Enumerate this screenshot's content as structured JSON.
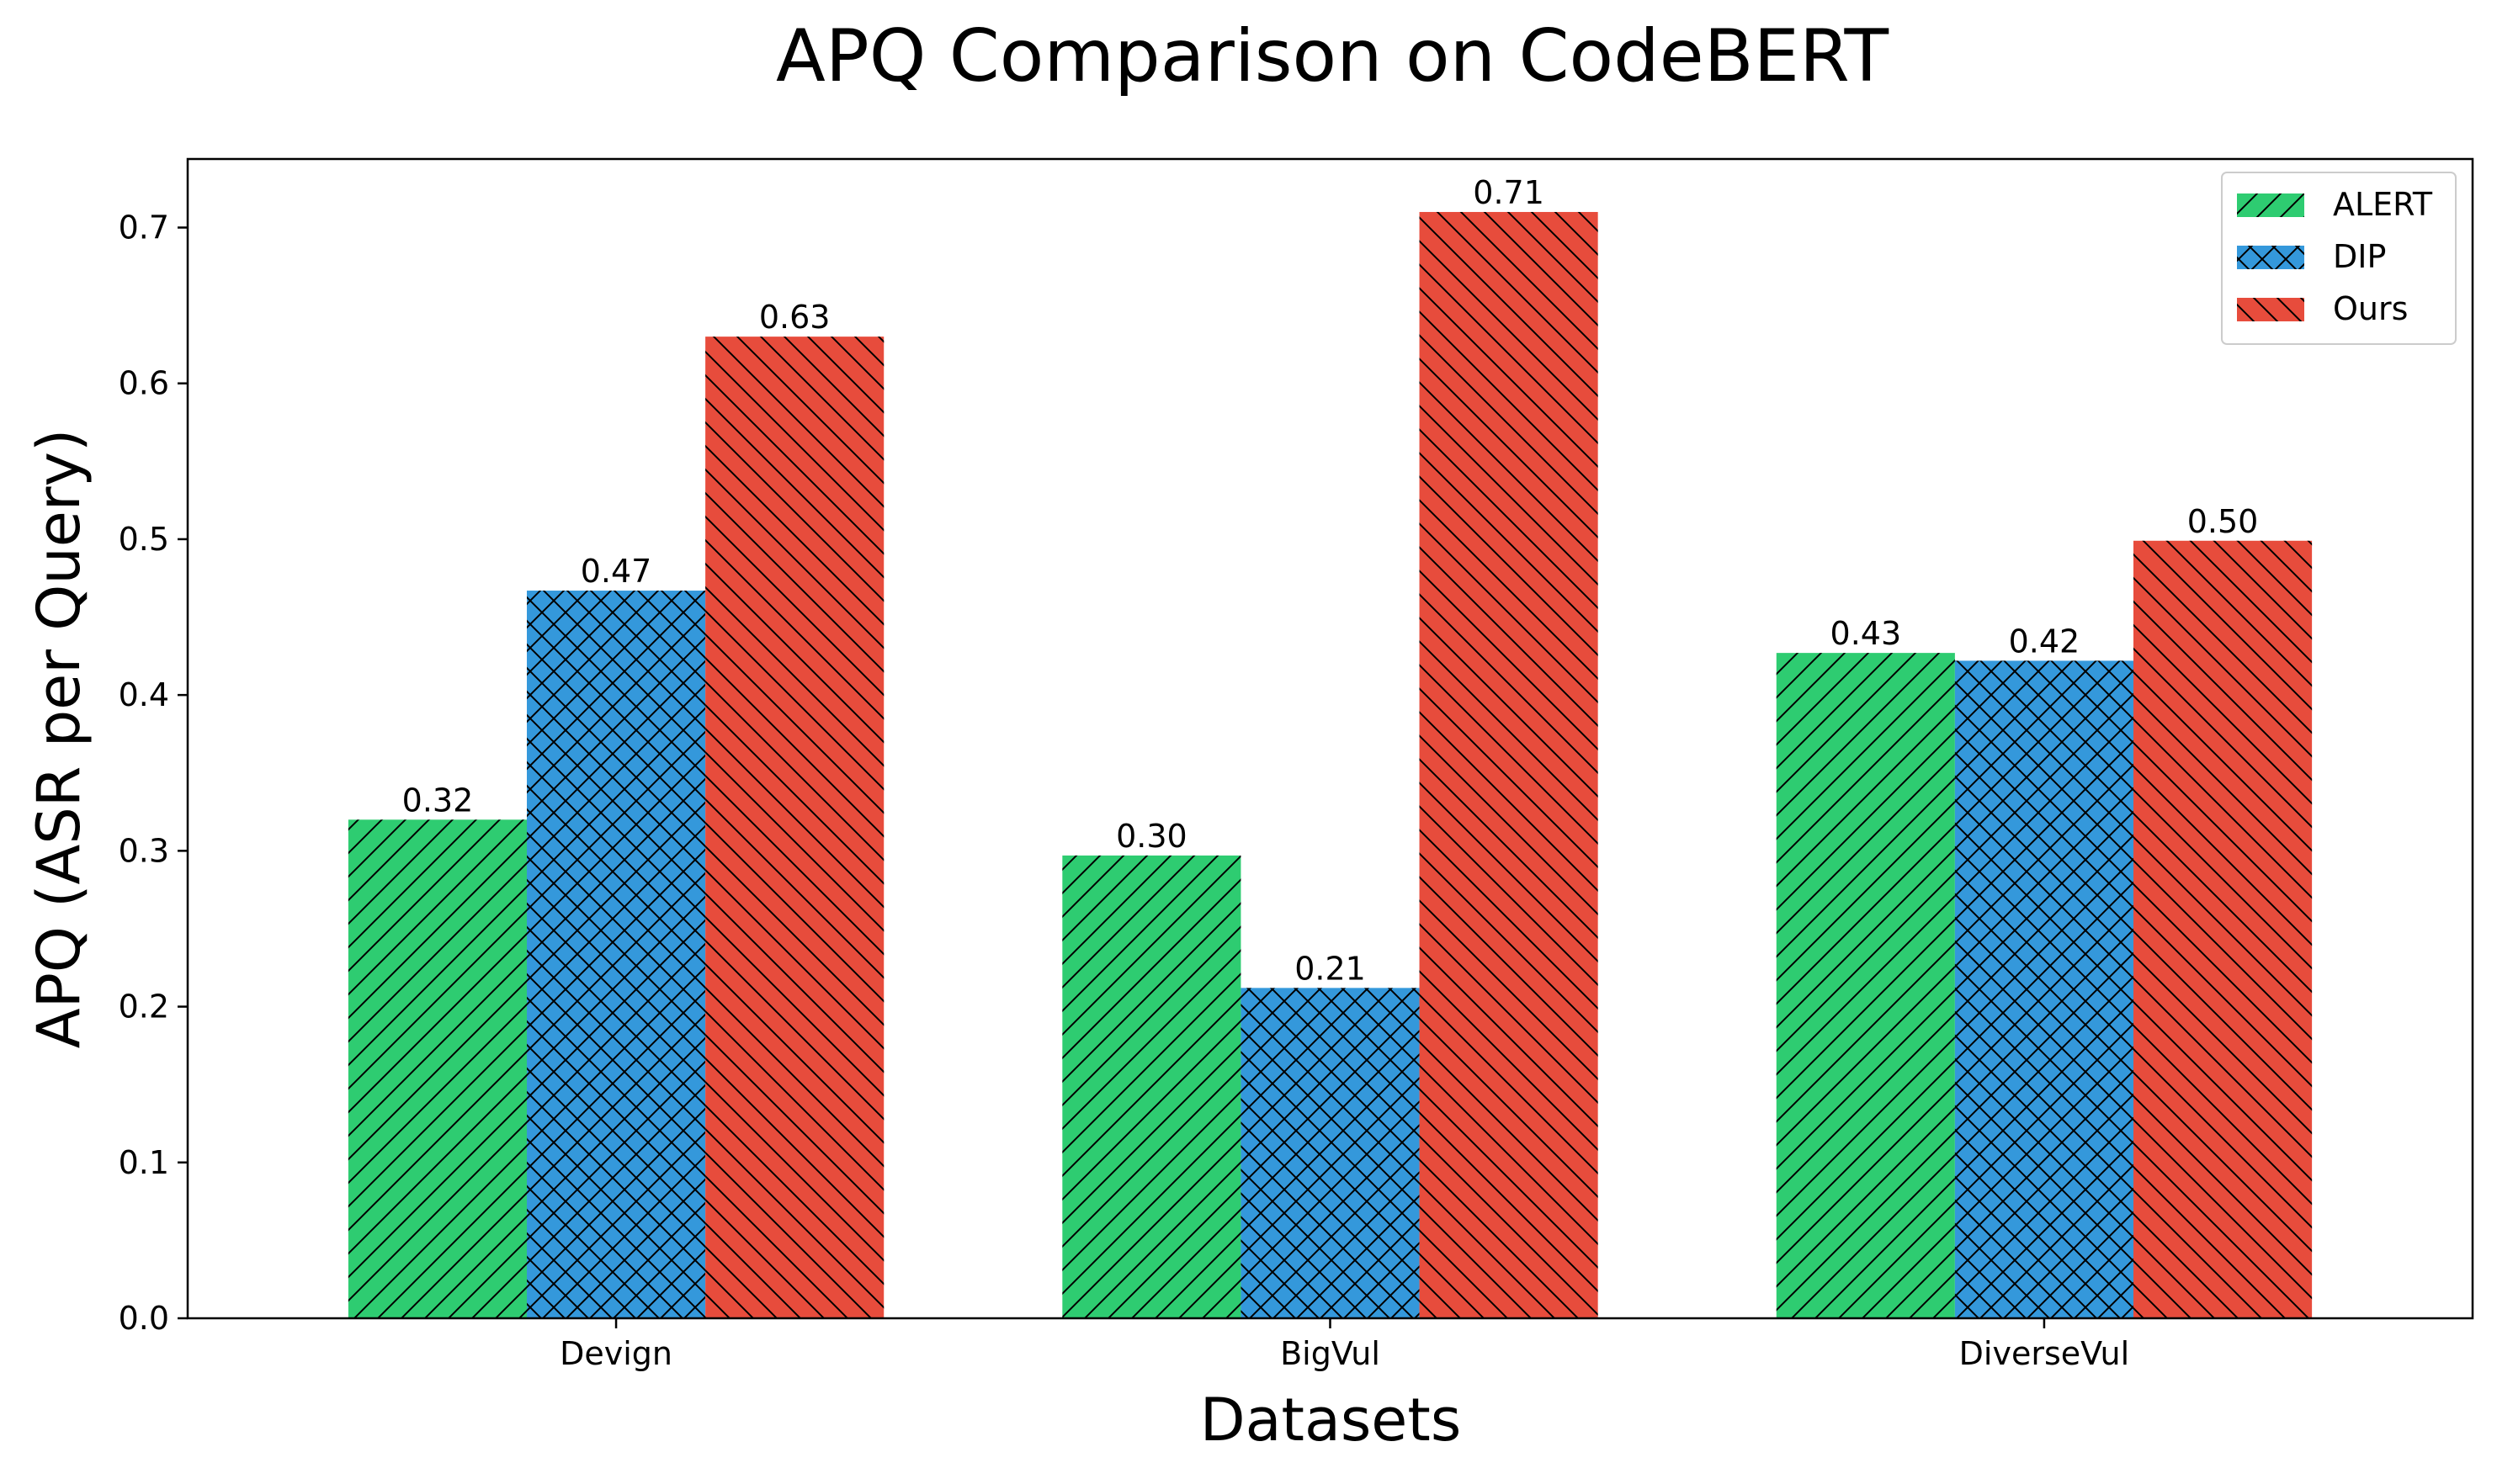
{
  "chart_data": {
    "type": "bar",
    "title": "APQ Comparison on CodeBERT",
    "xlabel": "Datasets",
    "ylabel": "APQ (ASR per Query)",
    "categories": [
      "Devign",
      "BigVul",
      "DiverseVul"
    ],
    "series": [
      {
        "name": "ALERT",
        "values": [
          0.32,
          0.297,
          0.427
        ],
        "labels": [
          "0.32",
          "0.30",
          "0.43"
        ],
        "color": "#2ecc71",
        "hatch": "forward"
      },
      {
        "name": "DIP",
        "values": [
          0.467,
          0.212,
          0.422
        ],
        "labels": [
          "0.47",
          "0.21",
          "0.42"
        ],
        "color": "#3498db",
        "hatch": "cross"
      },
      {
        "name": "Ours",
        "values": [
          0.63,
          0.71,
          0.499
        ],
        "labels": [
          "0.63",
          "0.71",
          "0.50"
        ],
        "color": "#e74c3c",
        "hatch": "back"
      }
    ],
    "ylim": [
      0,
      0.744
    ],
    "yticks": [
      "0.0",
      "0.1",
      "0.2",
      "0.3",
      "0.4",
      "0.5",
      "0.6",
      "0.7"
    ],
    "legend_position": "top-right",
    "grid": false
  }
}
